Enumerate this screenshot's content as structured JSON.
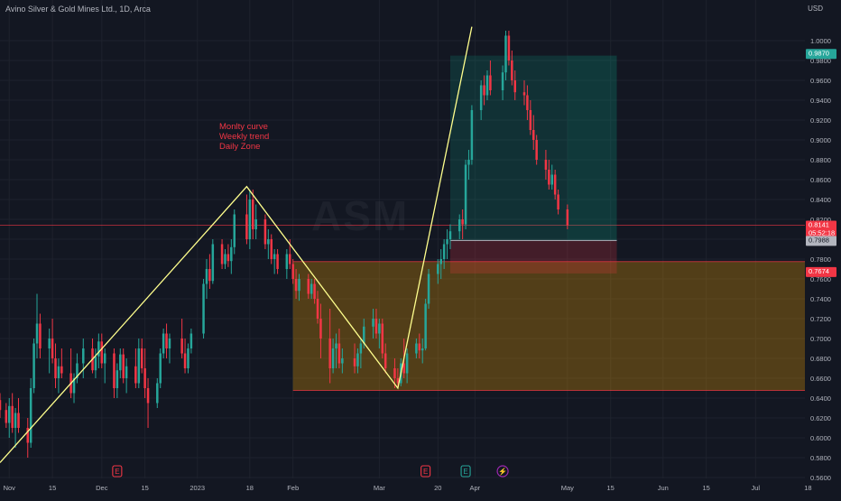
{
  "header": {
    "title": "Avino Silver & Gold Mines Ltd., 1D, Arca",
    "currency": "USD",
    "watermark": "ASM"
  },
  "annotations": {
    "lines": [
      "Monlty curve",
      "Weekly trend",
      "Daily Zone"
    ],
    "color": "#f23645"
  },
  "price_labels": {
    "current": "0.8141",
    "countdown": "05:52:18",
    "high_marker": "0.9870",
    "stop_marker": "0.7988",
    "zone_marker": "0.7674"
  },
  "colors": {
    "up": "#26a69a",
    "down": "#f23645",
    "trendline": "#ffff8d",
    "zone": "#f7a600",
    "current_line": "#f23645"
  },
  "event_markers": [
    {
      "label": "E",
      "date": "2022-12-06",
      "type": "earnings"
    },
    {
      "label": "E",
      "date": "2023-03-16",
      "type": "earnings"
    },
    {
      "label": "E",
      "date": "2023-03-29",
      "type": "earnings"
    },
    {
      "label": "⚡",
      "date": "2023-04-10",
      "type": "split"
    }
  ],
  "chart_data": {
    "type": "candlestick",
    "x_axis": {
      "range": [
        "2022-10-29",
        "2023-07-17"
      ],
      "tick_labels": [
        {
          "label": "Nov",
          "date": "2022-11-01"
        },
        {
          "label": "15",
          "date": "2022-11-15"
        },
        {
          "label": "Dec",
          "date": "2022-12-01"
        },
        {
          "label": "15",
          "date": "2022-12-15"
        },
        {
          "label": "2023",
          "date": "2023-01-01"
        },
        {
          "label": "18",
          "date": "2023-01-18"
        },
        {
          "label": "Feb",
          "date": "2023-02-01"
        },
        {
          "label": "Mar",
          "date": "2023-03-01"
        },
        {
          "label": "20",
          "date": "2023-03-20"
        },
        {
          "label": "Apr",
          "date": "2023-04-01"
        },
        {
          "label": "May",
          "date": "2023-05-01"
        },
        {
          "label": "15",
          "date": "2023-05-15"
        },
        {
          "label": "Jun",
          "date": "2023-06-01"
        },
        {
          "label": "15",
          "date": "2023-06-15"
        },
        {
          "label": "Jul",
          "date": "2023-07-01"
        },
        {
          "label": "18",
          "date": "2023-07-18"
        }
      ]
    },
    "y_axis": {
      "range": [
        0.55,
        1.03
      ],
      "tick_labels": [
        "1.0000",
        "0.9800",
        "0.9600",
        "0.9400",
        "0.9200",
        "0.9000",
        "0.8800",
        "0.8600",
        "0.8400",
        "0.8200",
        "0.8000",
        "0.7800",
        "0.7600",
        "0.7400",
        "0.7200",
        "0.7000",
        "0.6800",
        "0.6600",
        "0.6400",
        "0.6200",
        "0.6000",
        "0.5800",
        "0.5600"
      ]
    },
    "trendline_points": [
      {
        "date": "2022-10-29",
        "price": 0.575
      },
      {
        "date": "2023-01-17",
        "price": 0.853
      },
      {
        "date": "2023-03-07",
        "price": 0.65
      },
      {
        "date": "2023-03-31",
        "price": 1.014
      }
    ],
    "demand_zone": {
      "start": "2023-02-01",
      "end": "2023-07-17",
      "top": 0.7775,
      "bottom": 0.6477
    },
    "position_box": {
      "start": "2023-03-24",
      "end": "2023-05-17",
      "target": 0.9849,
      "entry": 0.7988,
      "stop": 0.7655
    },
    "current_price": 0.8141,
    "candles": [
      {
        "d": "2022-10-29",
        "o": 0.638,
        "h": 0.645,
        "l": 0.62,
        "c": 0.628
      },
      {
        "d": "2022-10-31",
        "o": 0.628,
        "h": 0.635,
        "l": 0.61,
        "c": 0.615
      },
      {
        "d": "2022-11-01",
        "o": 0.615,
        "h": 0.64,
        "l": 0.6,
        "c": 0.632
      },
      {
        "d": "2022-11-02",
        "o": 0.632,
        "h": 0.645,
        "l": 0.605,
        "c": 0.61
      },
      {
        "d": "2022-11-03",
        "o": 0.61,
        "h": 0.63,
        "l": 0.59,
        "c": 0.625
      },
      {
        "d": "2022-11-04",
        "o": 0.625,
        "h": 0.64,
        "l": 0.605,
        "c": 0.61
      },
      {
        "d": "2022-11-07",
        "o": 0.61,
        "h": 0.62,
        "l": 0.58,
        "c": 0.595
      },
      {
        "d": "2022-11-08",
        "o": 0.595,
        "h": 0.66,
        "l": 0.59,
        "c": 0.65
      },
      {
        "d": "2022-11-09",
        "o": 0.65,
        "h": 0.7,
        "l": 0.645,
        "c": 0.695
      },
      {
        "d": "2022-11-10",
        "o": 0.695,
        "h": 0.745,
        "l": 0.68,
        "c": 0.715
      },
      {
        "d": "2022-11-11",
        "o": 0.715,
        "h": 0.725,
        "l": 0.68,
        "c": 0.69
      },
      {
        "d": "2022-11-14",
        "o": 0.69,
        "h": 0.71,
        "l": 0.665,
        "c": 0.7
      },
      {
        "d": "2022-11-15",
        "o": 0.7,
        "h": 0.72,
        "l": 0.675,
        "c": 0.68
      },
      {
        "d": "2022-11-16",
        "o": 0.68,
        "h": 0.695,
        "l": 0.65,
        "c": 0.66
      },
      {
        "d": "2022-11-17",
        "o": 0.66,
        "h": 0.68,
        "l": 0.645,
        "c": 0.672
      },
      {
        "d": "2022-11-18",
        "o": 0.672,
        "h": 0.69,
        "l": 0.66,
        "c": 0.665
      },
      {
        "d": "2022-11-21",
        "o": 0.665,
        "h": 0.69,
        "l": 0.64,
        "c": 0.645
      },
      {
        "d": "2022-11-22",
        "o": 0.645,
        "h": 0.665,
        "l": 0.635,
        "c": 0.66
      },
      {
        "d": "2022-11-23",
        "o": 0.66,
        "h": 0.685,
        "l": 0.655,
        "c": 0.675
      },
      {
        "d": "2022-11-25",
        "o": 0.675,
        "h": 0.7,
        "l": 0.66,
        "c": 0.69
      },
      {
        "d": "2022-11-28",
        "o": 0.69,
        "h": 0.7,
        "l": 0.665,
        "c": 0.668
      },
      {
        "d": "2022-11-29",
        "o": 0.668,
        "h": 0.69,
        "l": 0.66,
        "c": 0.682
      },
      {
        "d": "2022-11-30",
        "o": 0.682,
        "h": 0.705,
        "l": 0.67,
        "c": 0.697
      },
      {
        "d": "2022-12-01",
        "o": 0.697,
        "h": 0.705,
        "l": 0.67,
        "c": 0.675
      },
      {
        "d": "2022-12-02",
        "o": 0.675,
        "h": 0.69,
        "l": 0.655,
        "c": 0.685
      },
      {
        "d": "2022-12-05",
        "o": 0.685,
        "h": 0.69,
        "l": 0.64,
        "c": 0.65
      },
      {
        "d": "2022-12-06",
        "o": 0.65,
        "h": 0.675,
        "l": 0.64,
        "c": 0.668
      },
      {
        "d": "2022-12-07",
        "o": 0.668,
        "h": 0.69,
        "l": 0.66,
        "c": 0.684
      },
      {
        "d": "2022-12-08",
        "o": 0.684,
        "h": 0.69,
        "l": 0.655,
        "c": 0.66
      },
      {
        "d": "2022-12-09",
        "o": 0.66,
        "h": 0.68,
        "l": 0.645,
        "c": 0.672
      },
      {
        "d": "2022-12-12",
        "o": 0.672,
        "h": 0.69,
        "l": 0.65,
        "c": 0.655
      },
      {
        "d": "2022-12-13",
        "o": 0.655,
        "h": 0.7,
        "l": 0.65,
        "c": 0.69
      },
      {
        "d": "2022-12-14",
        "o": 0.69,
        "h": 0.7,
        "l": 0.665,
        "c": 0.67
      },
      {
        "d": "2022-12-15",
        "o": 0.67,
        "h": 0.69,
        "l": 0.64,
        "c": 0.65
      },
      {
        "d": "2022-12-16",
        "o": 0.65,
        "h": 0.66,
        "l": 0.61,
        "c": 0.635
      },
      {
        "d": "2022-12-19",
        "o": 0.635,
        "h": 0.66,
        "l": 0.63,
        "c": 0.655
      },
      {
        "d": "2022-12-20",
        "o": 0.655,
        "h": 0.69,
        "l": 0.65,
        "c": 0.685
      },
      {
        "d": "2022-12-21",
        "o": 0.685,
        "h": 0.71,
        "l": 0.68,
        "c": 0.705
      },
      {
        "d": "2022-12-22",
        "o": 0.705,
        "h": 0.715,
        "l": 0.68,
        "c": 0.69
      },
      {
        "d": "2022-12-23",
        "o": 0.69,
        "h": 0.705,
        "l": 0.675,
        "c": 0.7
      },
      {
        "d": "2022-12-27",
        "o": 0.7,
        "h": 0.72,
        "l": 0.68,
        "c": 0.685
      },
      {
        "d": "2022-12-28",
        "o": 0.685,
        "h": 0.7,
        "l": 0.665,
        "c": 0.67
      },
      {
        "d": "2022-12-29",
        "o": 0.67,
        "h": 0.695,
        "l": 0.665,
        "c": 0.69
      },
      {
        "d": "2022-12-30",
        "o": 0.69,
        "h": 0.71,
        "l": 0.685,
        "c": 0.705
      },
      {
        "d": "2023-01-03",
        "o": 0.705,
        "h": 0.76,
        "l": 0.7,
        "c": 0.755
      },
      {
        "d": "2023-01-04",
        "o": 0.755,
        "h": 0.78,
        "l": 0.74,
        "c": 0.77
      },
      {
        "d": "2023-01-05",
        "o": 0.77,
        "h": 0.785,
        "l": 0.75,
        "c": 0.758
      },
      {
        "d": "2023-01-06",
        "o": 0.758,
        "h": 0.8,
        "l": 0.755,
        "c": 0.795
      },
      {
        "d": "2023-01-09",
        "o": 0.795,
        "h": 0.8,
        "l": 0.77,
        "c": 0.775
      },
      {
        "d": "2023-01-10",
        "o": 0.775,
        "h": 0.79,
        "l": 0.77,
        "c": 0.785
      },
      {
        "d": "2023-01-11",
        "o": 0.785,
        "h": 0.795,
        "l": 0.772,
        "c": 0.778
      },
      {
        "d": "2023-01-12",
        "o": 0.778,
        "h": 0.8,
        "l": 0.765,
        "c": 0.792
      },
      {
        "d": "2023-01-13",
        "o": 0.792,
        "h": 0.83,
        "l": 0.785,
        "c": 0.825
      },
      {
        "d": "2023-01-17",
        "o": 0.825,
        "h": 0.845,
        "l": 0.795,
        "c": 0.8
      },
      {
        "d": "2023-01-18",
        "o": 0.8,
        "h": 0.85,
        "l": 0.79,
        "c": 0.84
      },
      {
        "d": "2023-01-19",
        "o": 0.84,
        "h": 0.85,
        "l": 0.8,
        "c": 0.81
      },
      {
        "d": "2023-01-20",
        "o": 0.81,
        "h": 0.835,
        "l": 0.8,
        "c": 0.82
      },
      {
        "d": "2023-01-23",
        "o": 0.82,
        "h": 0.825,
        "l": 0.79,
        "c": 0.795
      },
      {
        "d": "2023-01-24",
        "o": 0.795,
        "h": 0.81,
        "l": 0.78,
        "c": 0.8
      },
      {
        "d": "2023-01-25",
        "o": 0.8,
        "h": 0.805,
        "l": 0.775,
        "c": 0.78
      },
      {
        "d": "2023-01-26",
        "o": 0.78,
        "h": 0.79,
        "l": 0.765,
        "c": 0.785
      },
      {
        "d": "2023-01-27",
        "o": 0.785,
        "h": 0.79,
        "l": 0.765,
        "c": 0.77
      },
      {
        "d": "2023-01-30",
        "o": 0.77,
        "h": 0.79,
        "l": 0.76,
        "c": 0.785
      },
      {
        "d": "2023-01-31",
        "o": 0.785,
        "h": 0.8,
        "l": 0.77,
        "c": 0.775
      },
      {
        "d": "2023-02-01",
        "o": 0.775,
        "h": 0.78,
        "l": 0.755,
        "c": 0.76
      },
      {
        "d": "2023-02-02",
        "o": 0.76,
        "h": 0.77,
        "l": 0.74,
        "c": 0.748
      },
      {
        "d": "2023-02-03",
        "o": 0.748,
        "h": 0.765,
        "l": 0.738,
        "c": 0.76
      },
      {
        "d": "2023-02-06",
        "o": 0.76,
        "h": 0.765,
        "l": 0.74,
        "c": 0.745
      },
      {
        "d": "2023-02-07",
        "o": 0.745,
        "h": 0.76,
        "l": 0.74,
        "c": 0.755
      },
      {
        "d": "2023-02-08",
        "o": 0.755,
        "h": 0.76,
        "l": 0.735,
        "c": 0.74
      },
      {
        "d": "2023-02-09",
        "o": 0.74,
        "h": 0.748,
        "l": 0.715,
        "c": 0.72
      },
      {
        "d": "2023-02-10",
        "o": 0.72,
        "h": 0.735,
        "l": 0.68,
        "c": 0.7
      },
      {
        "d": "2023-02-13",
        "o": 0.7,
        "h": 0.73,
        "l": 0.655,
        "c": 0.67
      },
      {
        "d": "2023-02-14",
        "o": 0.67,
        "h": 0.7,
        "l": 0.665,
        "c": 0.69
      },
      {
        "d": "2023-02-15",
        "o": 0.69,
        "h": 0.705,
        "l": 0.67,
        "c": 0.695
      },
      {
        "d": "2023-02-16",
        "o": 0.695,
        "h": 0.71,
        "l": 0.67,
        "c": 0.675
      },
      {
        "d": "2023-02-17",
        "o": 0.675,
        "h": 0.69,
        "l": 0.665,
        "c": 0.68
      },
      {
        "d": "2023-02-21",
        "o": 0.68,
        "h": 0.695,
        "l": 0.665,
        "c": 0.672
      },
      {
        "d": "2023-02-22",
        "o": 0.672,
        "h": 0.69,
        "l": 0.665,
        "c": 0.685
      },
      {
        "d": "2023-02-23",
        "o": 0.685,
        "h": 0.7,
        "l": 0.67,
        "c": 0.695
      },
      {
        "d": "2023-02-24",
        "o": 0.695,
        "h": 0.72,
        "l": 0.69,
        "c": 0.712
      },
      {
        "d": "2023-02-27",
        "o": 0.712,
        "h": 0.73,
        "l": 0.7,
        "c": 0.72
      },
      {
        "d": "2023-02-28",
        "o": 0.72,
        "h": 0.73,
        "l": 0.7,
        "c": 0.705
      },
      {
        "d": "2023-03-01",
        "o": 0.705,
        "h": 0.72,
        "l": 0.69,
        "c": 0.715
      },
      {
        "d": "2023-03-02",
        "o": 0.715,
        "h": 0.72,
        "l": 0.68,
        "c": 0.685
      },
      {
        "d": "2023-03-03",
        "o": 0.685,
        "h": 0.695,
        "l": 0.665,
        "c": 0.67
      },
      {
        "d": "2023-03-06",
        "o": 0.67,
        "h": 0.68,
        "l": 0.65,
        "c": 0.66
      },
      {
        "d": "2023-03-07",
        "o": 0.66,
        "h": 0.67,
        "l": 0.65,
        "c": 0.655
      },
      {
        "d": "2023-03-08",
        "o": 0.655,
        "h": 0.68,
        "l": 0.652,
        "c": 0.675
      },
      {
        "d": "2023-03-09",
        "o": 0.675,
        "h": 0.7,
        "l": 0.66,
        "c": 0.665
      },
      {
        "d": "2023-03-10",
        "o": 0.665,
        "h": 0.69,
        "l": 0.655,
        "c": 0.685
      },
      {
        "d": "2023-03-13",
        "o": 0.685,
        "h": 0.7,
        "l": 0.68,
        "c": 0.695
      },
      {
        "d": "2023-03-14",
        "o": 0.695,
        "h": 0.705,
        "l": 0.68,
        "c": 0.688
      },
      {
        "d": "2023-03-15",
        "o": 0.688,
        "h": 0.7,
        "l": 0.675,
        "c": 0.69
      },
      {
        "d": "2023-03-16",
        "o": 0.69,
        "h": 0.74,
        "l": 0.688,
        "c": 0.735
      },
      {
        "d": "2023-03-17",
        "o": 0.735,
        "h": 0.77,
        "l": 0.73,
        "c": 0.765
      },
      {
        "d": "2023-03-20",
        "o": 0.765,
        "h": 0.78,
        "l": 0.755,
        "c": 0.775
      },
      {
        "d": "2023-03-21",
        "o": 0.775,
        "h": 0.79,
        "l": 0.76,
        "c": 0.78
      },
      {
        "d": "2023-03-22",
        "o": 0.78,
        "h": 0.8,
        "l": 0.77,
        "c": 0.795
      },
      {
        "d": "2023-03-23",
        "o": 0.795,
        "h": 0.81,
        "l": 0.78,
        "c": 0.8
      },
      {
        "d": "2023-03-24",
        "o": 0.8,
        "h": 0.815,
        "l": 0.79,
        "c": 0.808
      },
      {
        "d": "2023-03-27",
        "o": 0.808,
        "h": 0.825,
        "l": 0.8,
        "c": 0.82
      },
      {
        "d": "2023-03-28",
        "o": 0.82,
        "h": 0.83,
        "l": 0.8,
        "c": 0.815
      },
      {
        "d": "2023-03-29",
        "o": 0.815,
        "h": 0.88,
        "l": 0.81,
        "c": 0.875
      },
      {
        "d": "2023-03-30",
        "o": 0.875,
        "h": 0.89,
        "l": 0.86,
        "c": 0.88
      },
      {
        "d": "2023-03-31",
        "o": 0.88,
        "h": 0.935,
        "l": 0.875,
        "c": 0.93
      },
      {
        "d": "2023-04-03",
        "o": 0.93,
        "h": 0.96,
        "l": 0.92,
        "c": 0.955
      },
      {
        "d": "2023-04-04",
        "o": 0.955,
        "h": 0.965,
        "l": 0.935,
        "c": 0.945
      },
      {
        "d": "2023-04-05",
        "o": 0.945,
        "h": 0.97,
        "l": 0.94,
        "c": 0.965
      },
      {
        "d": "2023-04-06",
        "o": 0.965,
        "h": 0.98,
        "l": 0.945,
        "c": 0.95
      },
      {
        "d": "2023-04-10",
        "o": 0.95,
        "h": 0.975,
        "l": 0.94,
        "c": 0.968
      },
      {
        "d": "2023-04-11",
        "o": 0.968,
        "h": 1.01,
        "l": 0.96,
        "c": 1.005
      },
      {
        "d": "2023-04-12",
        "o": 1.005,
        "h": 1.01,
        "l": 0.975,
        "c": 0.98
      },
      {
        "d": "2023-04-13",
        "o": 0.98,
        "h": 0.99,
        "l": 0.955,
        "c": 0.96
      },
      {
        "d": "2023-04-14",
        "o": 0.96,
        "h": 0.97,
        "l": 0.94,
        "c": 0.948
      },
      {
        "d": "2023-04-17",
        "o": 0.948,
        "h": 0.96,
        "l": 0.935,
        "c": 0.945
      },
      {
        "d": "2023-04-18",
        "o": 0.945,
        "h": 0.955,
        "l": 0.92,
        "c": 0.93
      },
      {
        "d": "2023-04-19",
        "o": 0.93,
        "h": 0.94,
        "l": 0.905,
        "c": 0.91
      },
      {
        "d": "2023-04-20",
        "o": 0.91,
        "h": 0.925,
        "l": 0.89,
        "c": 0.9
      },
      {
        "d": "2023-04-21",
        "o": 0.9,
        "h": 0.905,
        "l": 0.875,
        "c": 0.88
      },
      {
        "d": "2023-04-24",
        "o": 0.88,
        "h": 0.89,
        "l": 0.86,
        "c": 0.87
      },
      {
        "d": "2023-04-25",
        "o": 0.87,
        "h": 0.88,
        "l": 0.85,
        "c": 0.855
      },
      {
        "d": "2023-04-26",
        "o": 0.855,
        "h": 0.875,
        "l": 0.85,
        "c": 0.865
      },
      {
        "d": "2023-04-27",
        "o": 0.865,
        "h": 0.87,
        "l": 0.84,
        "c": 0.845
      },
      {
        "d": "2023-04-28",
        "o": 0.845,
        "h": 0.85,
        "l": 0.825,
        "c": 0.83
      },
      {
        "d": "2023-05-01",
        "o": 0.83,
        "h": 0.835,
        "l": 0.81,
        "c": 0.814
      }
    ]
  }
}
